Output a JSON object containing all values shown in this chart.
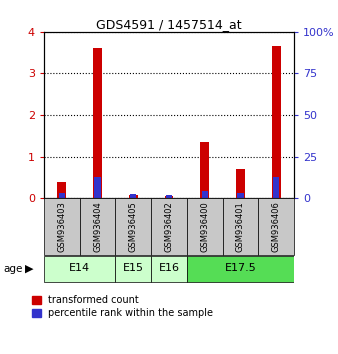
{
  "title": "GDS4591 / 1457514_at",
  "samples": [
    "GSM936403",
    "GSM936404",
    "GSM936405",
    "GSM936402",
    "GSM936400",
    "GSM936401",
    "GSM936406"
  ],
  "transformed_count": [
    0.38,
    3.6,
    0.08,
    0.05,
    1.35,
    0.7,
    3.65
  ],
  "percentile_rank_scaled": [
    0.12,
    0.52,
    0.1,
    0.08,
    0.165,
    0.13,
    0.52
  ],
  "age_groups": [
    {
      "label": "E14",
      "start": 0,
      "end": 1,
      "color": "#ccffcc"
    },
    {
      "label": "E15",
      "start": 2,
      "end": 2,
      "color": "#ccffcc"
    },
    {
      "label": "E16",
      "start": 3,
      "end": 3,
      "color": "#ccffcc"
    },
    {
      "label": "E17.5",
      "start": 4,
      "end": 6,
      "color": "#55dd55"
    }
  ],
  "ylim_left": [
    0,
    4
  ],
  "ylim_right": [
    0,
    100
  ],
  "yticks_left": [
    0,
    1,
    2,
    3,
    4
  ],
  "yticks_right": [
    0,
    25,
    50,
    75,
    100
  ],
  "red_color": "#cc0000",
  "blue_color": "#3333cc",
  "sample_bg_color": "#c8c8c8",
  "legend_labels": [
    "transformed count",
    "percentile rank within the sample"
  ]
}
